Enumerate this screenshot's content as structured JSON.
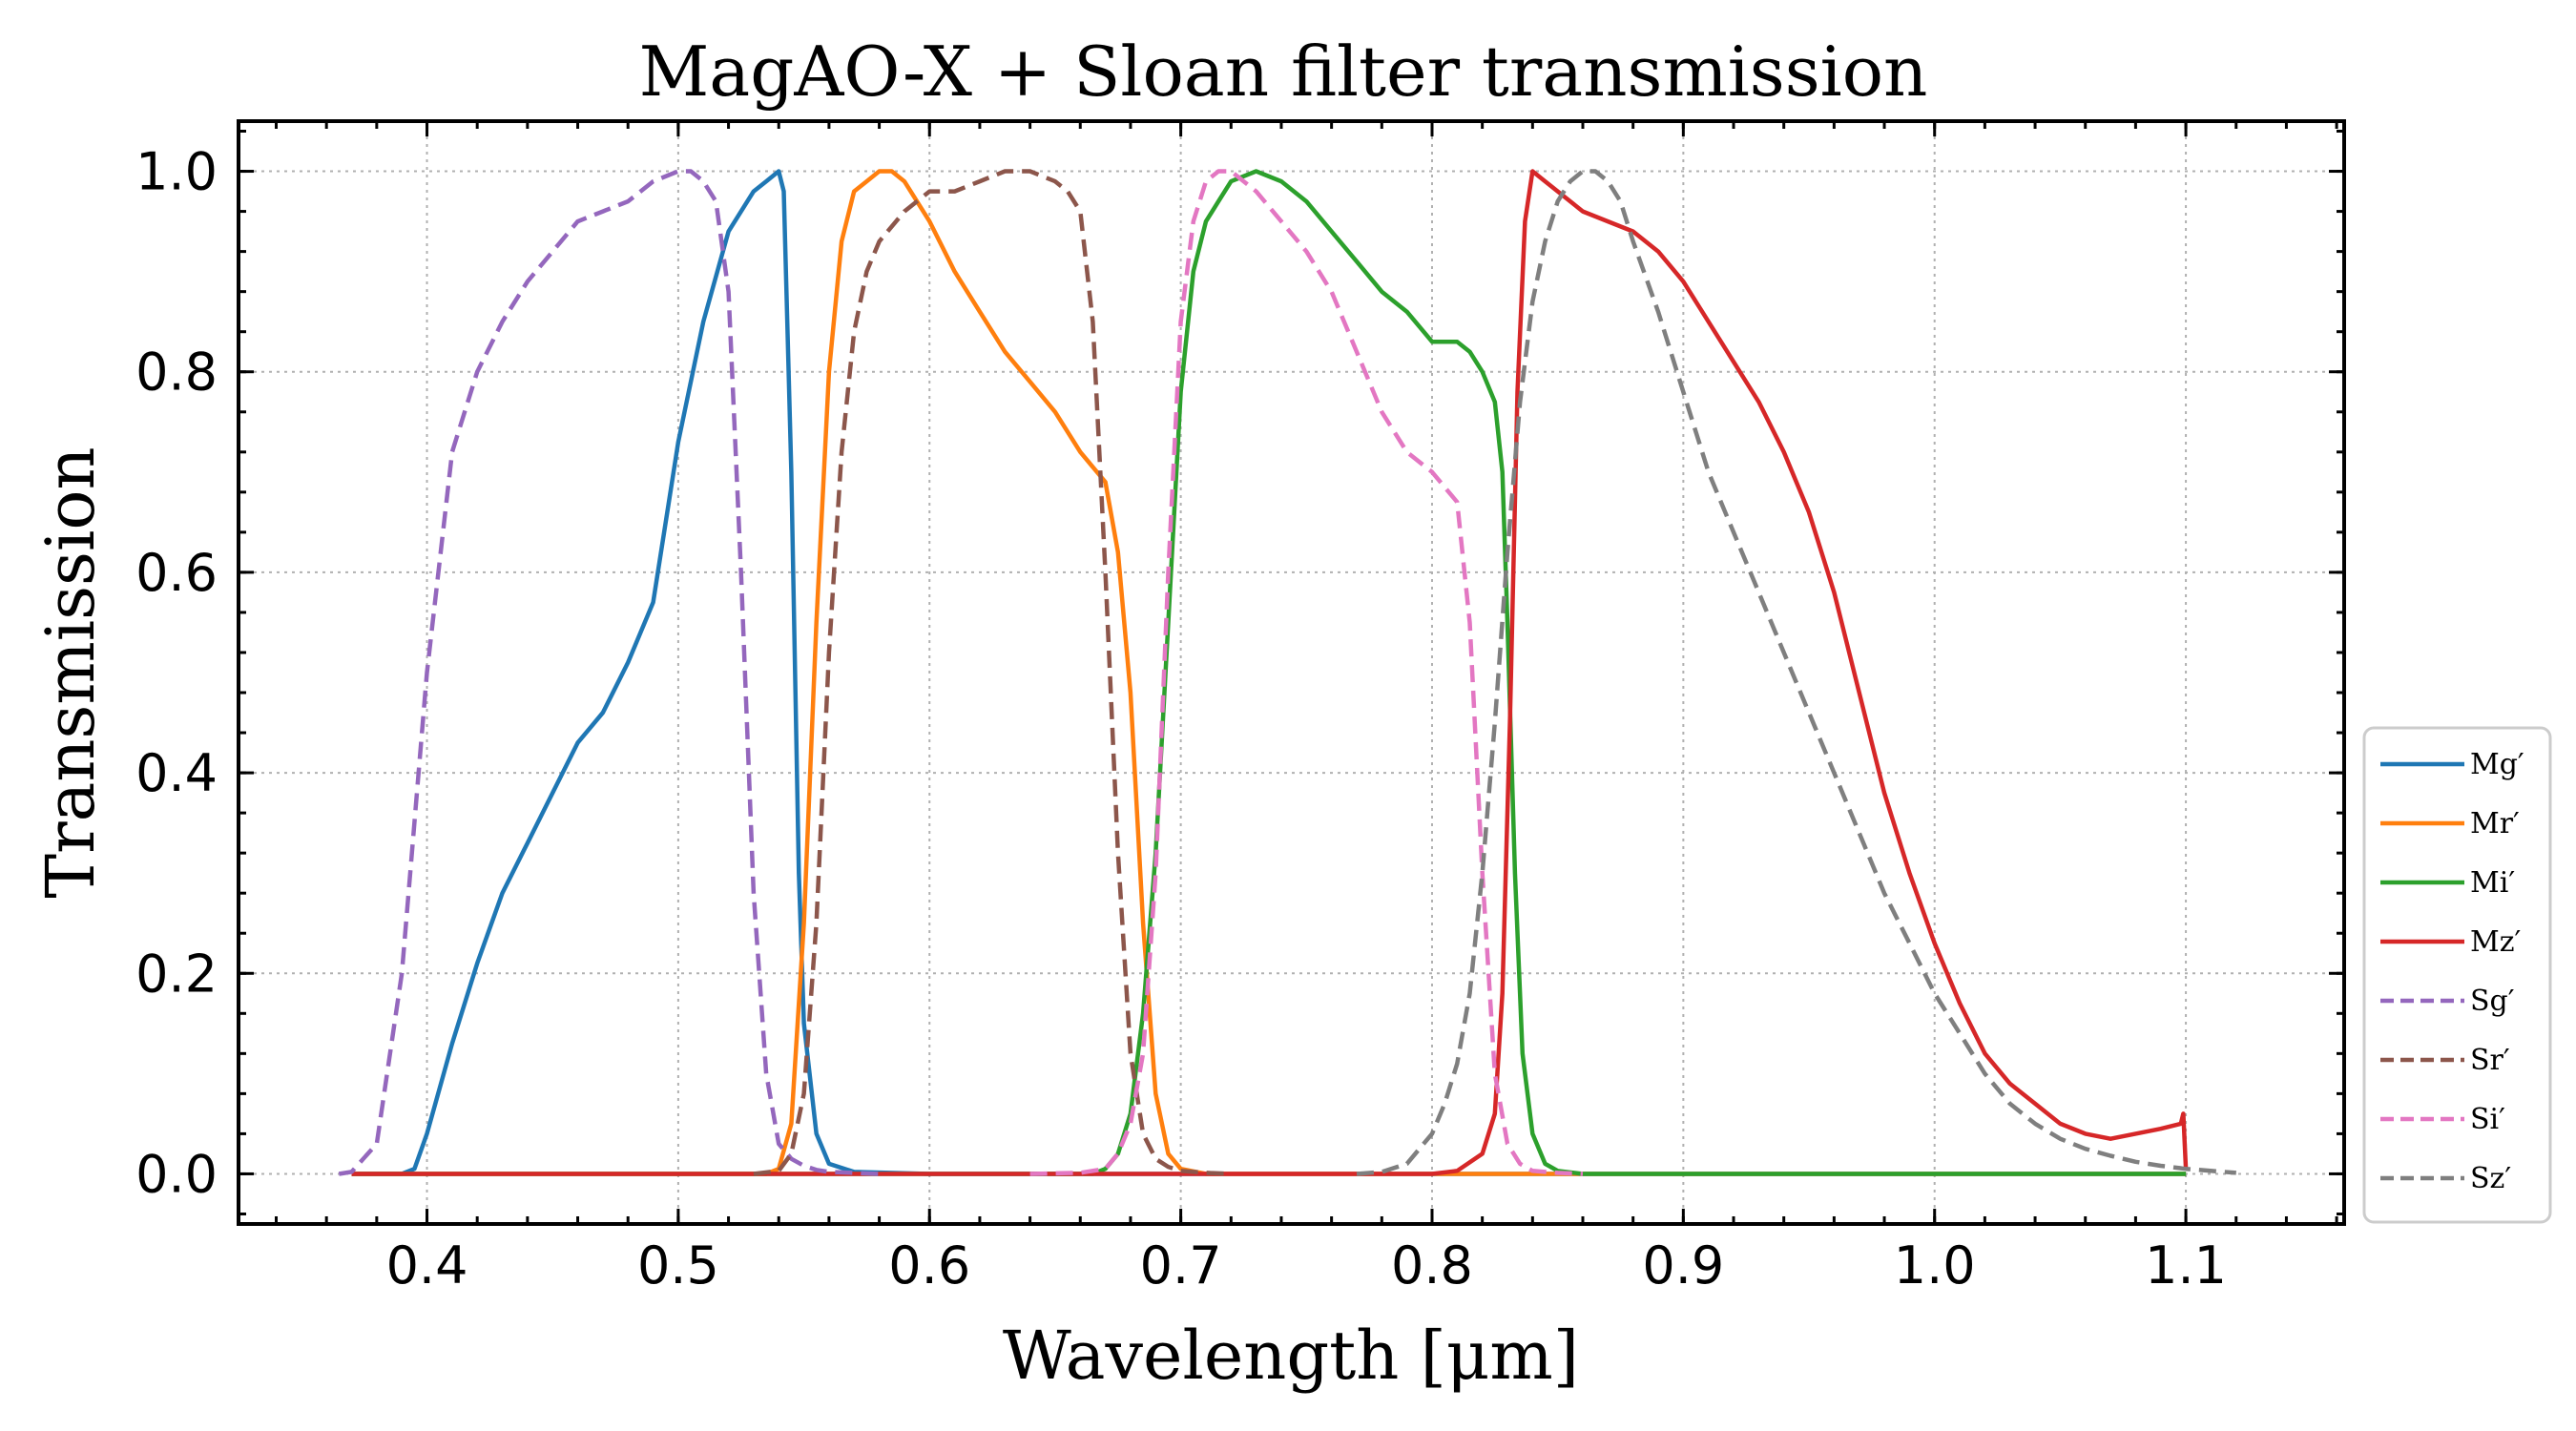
{
  "colors": {
    "Mg": "#1f77b4",
    "Mr": "#ff7f0e",
    "Mi": "#2ca02c",
    "Mz": "#d62728",
    "Sg": "#9467bd",
    "Sr": "#8c564b",
    "Si": "#e377c2",
    "Sz": "#7f7f7f"
  },
  "chart_data": {
    "type": "line",
    "title": "MagAO-X + Sloan filter transmission",
    "xlabel": "Wavelength [μm]",
    "ylabel": "Transmission",
    "xlim": [
      0.325,
      1.163
    ],
    "ylim": [
      -0.05,
      1.05
    ],
    "xticks": [
      0.4,
      0.5,
      0.6,
      0.7,
      0.8,
      0.9,
      1.0,
      1.1
    ],
    "xtick_labels": [
      "0.4",
      "0.5",
      "0.6",
      "0.7",
      "0.8",
      "0.9",
      "1.0",
      "1.1"
    ],
    "yticks": [
      0.0,
      0.2,
      0.4,
      0.6,
      0.8,
      1.0
    ],
    "ytick_labels": [
      "0.0",
      "0.2",
      "0.4",
      "0.6",
      "0.8",
      "1.0"
    ],
    "grid": true,
    "legend_position": "right-bottom-outside",
    "series": [
      {
        "name": "Mg′",
        "key": "Mg",
        "style": "solid",
        "x": [
          0.37,
          0.39,
          0.395,
          0.4,
          0.41,
          0.42,
          0.43,
          0.44,
          0.45,
          0.46,
          0.47,
          0.48,
          0.49,
          0.5,
          0.51,
          0.52,
          0.53,
          0.535,
          0.54,
          0.542,
          0.545,
          0.548,
          0.55,
          0.555,
          0.56,
          0.57,
          0.6,
          1.1
        ],
        "y": [
          0,
          0,
          0.005,
          0.04,
          0.13,
          0.21,
          0.28,
          0.33,
          0.38,
          0.43,
          0.46,
          0.51,
          0.57,
          0.73,
          0.85,
          0.94,
          0.98,
          0.99,
          1.0,
          0.98,
          0.7,
          0.3,
          0.15,
          0.04,
          0.01,
          0.002,
          0,
          0
        ]
      },
      {
        "name": "Mr′",
        "key": "Mr",
        "style": "solid",
        "x": [
          0.37,
          0.535,
          0.54,
          0.545,
          0.55,
          0.555,
          0.56,
          0.565,
          0.57,
          0.575,
          0.58,
          0.585,
          0.59,
          0.6,
          0.61,
          0.62,
          0.63,
          0.64,
          0.65,
          0.66,
          0.67,
          0.675,
          0.68,
          0.685,
          0.69,
          0.695,
          0.7,
          0.71,
          0.75,
          1.1
        ],
        "y": [
          0,
          0,
          0.005,
          0.05,
          0.25,
          0.55,
          0.8,
          0.93,
          0.98,
          0.99,
          1.0,
          1.0,
          0.99,
          0.95,
          0.9,
          0.86,
          0.82,
          0.79,
          0.76,
          0.72,
          0.69,
          0.62,
          0.48,
          0.25,
          0.08,
          0.02,
          0.005,
          0,
          0,
          0
        ]
      },
      {
        "name": "Mi′",
        "key": "Mi",
        "style": "solid",
        "x": [
          0.37,
          0.665,
          0.67,
          0.675,
          0.68,
          0.685,
          0.69,
          0.695,
          0.7,
          0.705,
          0.71,
          0.715,
          0.72,
          0.73,
          0.74,
          0.75,
          0.76,
          0.77,
          0.78,
          0.79,
          0.8,
          0.81,
          0.815,
          0.82,
          0.825,
          0.828,
          0.83,
          0.833,
          0.836,
          0.84,
          0.845,
          0.85,
          0.86,
          1.1
        ],
        "y": [
          0,
          0,
          0.005,
          0.02,
          0.06,
          0.16,
          0.32,
          0.55,
          0.78,
          0.9,
          0.95,
          0.97,
          0.99,
          1.0,
          0.99,
          0.97,
          0.94,
          0.91,
          0.88,
          0.86,
          0.83,
          0.83,
          0.82,
          0.8,
          0.77,
          0.7,
          0.55,
          0.3,
          0.12,
          0.04,
          0.01,
          0.003,
          0,
          0
        ]
      },
      {
        "name": "Mz′",
        "key": "Mz",
        "style": "solid",
        "x": [
          0.37,
          0.8,
          0.81,
          0.82,
          0.825,
          0.828,
          0.831,
          0.834,
          0.837,
          0.84,
          0.845,
          0.85,
          0.86,
          0.87,
          0.88,
          0.89,
          0.9,
          0.91,
          0.92,
          0.93,
          0.94,
          0.95,
          0.96,
          0.97,
          0.98,
          0.99,
          1.0,
          1.01,
          1.02,
          1.03,
          1.04,
          1.05,
          1.06,
          1.07,
          1.08,
          1.09,
          1.098,
          1.099,
          1.1
        ],
        "y": [
          0,
          0,
          0.003,
          0.02,
          0.06,
          0.18,
          0.45,
          0.78,
          0.95,
          1.0,
          0.99,
          0.98,
          0.96,
          0.95,
          0.94,
          0.92,
          0.89,
          0.85,
          0.81,
          0.77,
          0.72,
          0.66,
          0.58,
          0.48,
          0.38,
          0.3,
          0.23,
          0.17,
          0.12,
          0.09,
          0.07,
          0.05,
          0.04,
          0.035,
          0.04,
          0.045,
          0.05,
          0.06,
          0.005
        ]
      },
      {
        "name": "Sg′",
        "key": "Sg",
        "style": "dashed",
        "x": [
          0.365,
          0.37,
          0.38,
          0.39,
          0.4,
          0.41,
          0.42,
          0.43,
          0.44,
          0.45,
          0.46,
          0.47,
          0.48,
          0.49,
          0.5,
          0.505,
          0.51,
          0.515,
          0.52,
          0.525,
          0.53,
          0.535,
          0.54,
          0.545,
          0.55,
          0.555,
          0.56,
          0.57,
          0.58
        ],
        "y": [
          0,
          0.002,
          0.03,
          0.2,
          0.5,
          0.72,
          0.8,
          0.85,
          0.89,
          0.92,
          0.95,
          0.96,
          0.97,
          0.99,
          1.0,
          1.0,
          0.99,
          0.97,
          0.88,
          0.6,
          0.28,
          0.1,
          0.03,
          0.015,
          0.008,
          0.004,
          0.002,
          0.001,
          0
        ]
      },
      {
        "name": "Sr′",
        "key": "Sr",
        "style": "dashed",
        "x": [
          0.53,
          0.54,
          0.545,
          0.55,
          0.555,
          0.56,
          0.565,
          0.57,
          0.575,
          0.58,
          0.59,
          0.6,
          0.61,
          0.62,
          0.63,
          0.64,
          0.65,
          0.655,
          0.66,
          0.665,
          0.67,
          0.675,
          0.68,
          0.685,
          0.69,
          0.695,
          0.7,
          0.71,
          0.72
        ],
        "y": [
          0,
          0.003,
          0.02,
          0.08,
          0.25,
          0.52,
          0.72,
          0.84,
          0.9,
          0.93,
          0.96,
          0.98,
          0.98,
          0.99,
          1.0,
          1.0,
          0.99,
          0.98,
          0.96,
          0.85,
          0.6,
          0.32,
          0.12,
          0.04,
          0.015,
          0.007,
          0.003,
          0.001,
          0
        ]
      },
      {
        "name": "Si′",
        "key": "Si",
        "style": "dashed",
        "x": [
          0.64,
          0.66,
          0.67,
          0.675,
          0.68,
          0.685,
          0.69,
          0.695,
          0.7,
          0.705,
          0.71,
          0.715,
          0.72,
          0.73,
          0.74,
          0.75,
          0.76,
          0.77,
          0.78,
          0.79,
          0.8,
          0.81,
          0.815,
          0.82,
          0.825,
          0.83,
          0.835,
          0.84,
          0.85,
          0.86
        ],
        "y": [
          0,
          0.001,
          0.005,
          0.02,
          0.05,
          0.12,
          0.3,
          0.6,
          0.85,
          0.95,
          0.99,
          1.0,
          1.0,
          0.98,
          0.95,
          0.92,
          0.88,
          0.82,
          0.76,
          0.72,
          0.7,
          0.67,
          0.55,
          0.3,
          0.1,
          0.03,
          0.01,
          0.003,
          0.001,
          0
        ]
      },
      {
        "name": "Sz′",
        "key": "Sz",
        "style": "dashed",
        "x": [
          0.77,
          0.78,
          0.79,
          0.8,
          0.805,
          0.81,
          0.815,
          0.82,
          0.825,
          0.83,
          0.835,
          0.84,
          0.845,
          0.85,
          0.855,
          0.86,
          0.865,
          0.87,
          0.875,
          0.88,
          0.89,
          0.9,
          0.91,
          0.92,
          0.93,
          0.94,
          0.95,
          0.96,
          0.97,
          0.98,
          0.99,
          1.0,
          1.01,
          1.02,
          1.03,
          1.04,
          1.05,
          1.06,
          1.07,
          1.08,
          1.09,
          1.1,
          1.12
        ],
        "y": [
          0,
          0.002,
          0.01,
          0.04,
          0.07,
          0.11,
          0.18,
          0.3,
          0.45,
          0.62,
          0.77,
          0.87,
          0.93,
          0.97,
          0.99,
          1.0,
          1.0,
          0.99,
          0.97,
          0.93,
          0.86,
          0.78,
          0.7,
          0.64,
          0.58,
          0.52,
          0.46,
          0.4,
          0.34,
          0.28,
          0.23,
          0.18,
          0.14,
          0.1,
          0.07,
          0.05,
          0.035,
          0.025,
          0.018,
          0.012,
          0.008,
          0.005,
          0.001
        ]
      }
    ]
  }
}
